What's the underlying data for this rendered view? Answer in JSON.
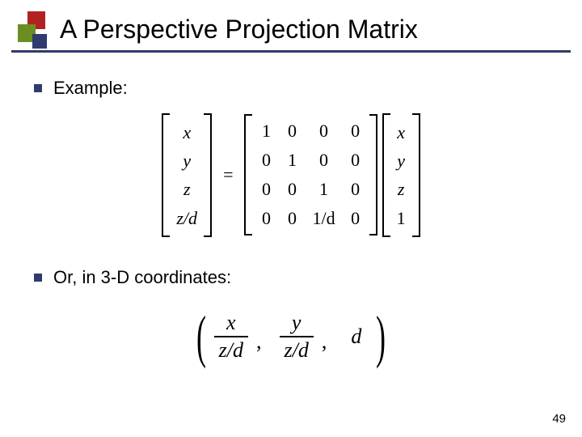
{
  "title": "A Perspective Projection Matrix",
  "page_number": "49",
  "logo_colors": {
    "red": "#b22222",
    "green": "#6b8e23",
    "navy": "#2f3b6e"
  },
  "underline_color": "#2f3b6e",
  "bullet_color": "#2f3b6e",
  "bullets": {
    "b1": "Example:",
    "b2": "Or, in 3-D coordinates:"
  },
  "equation1": {
    "left_vector": [
      "x",
      "y",
      "z",
      "z/d"
    ],
    "equals": "=",
    "matrix": [
      [
        "1",
        "0",
        "0",
        "0"
      ],
      [
        "0",
        "1",
        "0",
        "0"
      ],
      [
        "0",
        "0",
        "1",
        "0"
      ],
      [
        "0",
        "0",
        "1/d",
        "0"
      ]
    ],
    "right_vector": [
      "x",
      "y",
      "z",
      "1"
    ]
  },
  "equation2": {
    "open": "(",
    "term1": {
      "num": "x",
      "den": "z/d"
    },
    "sep": ",",
    "term2": {
      "num": "y",
      "den": "z/d"
    },
    "term3": "d",
    "close": ")"
  }
}
